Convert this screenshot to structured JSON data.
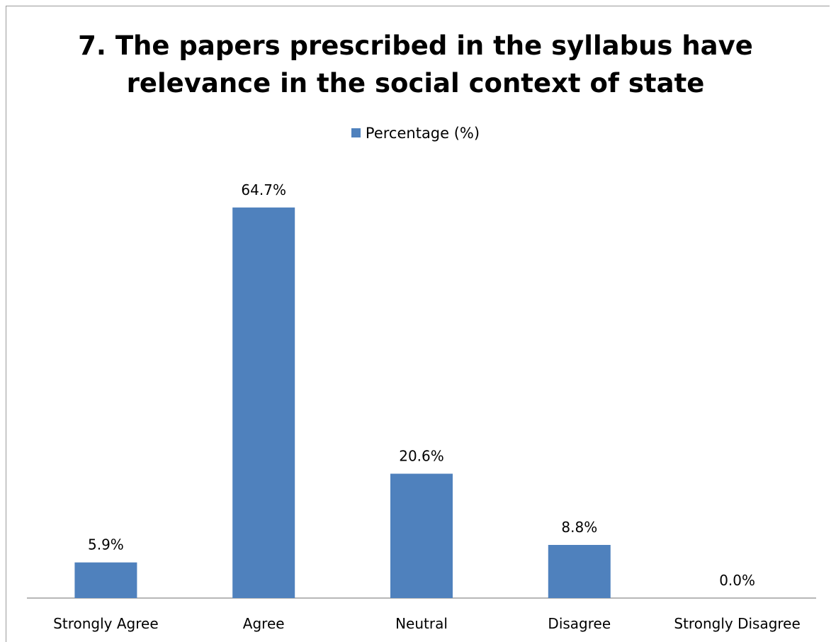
{
  "chart_data": {
    "type": "bar",
    "title_lines": [
      "7. The papers prescribed in the syllabus have",
      "relevance in the social context of state"
    ],
    "categories": [
      "Strongly Agree",
      "Agree",
      "Neutral",
      "Disagree",
      "Strongly Disagree"
    ],
    "series": [
      {
        "name": "Percentage (%)",
        "values": [
          5.9,
          64.7,
          20.6,
          8.8,
          0.0
        ],
        "data_labels": [
          "5.9%",
          "64.7%",
          "20.6%",
          "8.8%",
          "0.0%"
        ],
        "color": "#4F81BD"
      }
    ],
    "ylim": [
      0,
      70
    ],
    "grid": false,
    "legend_position": "top"
  }
}
